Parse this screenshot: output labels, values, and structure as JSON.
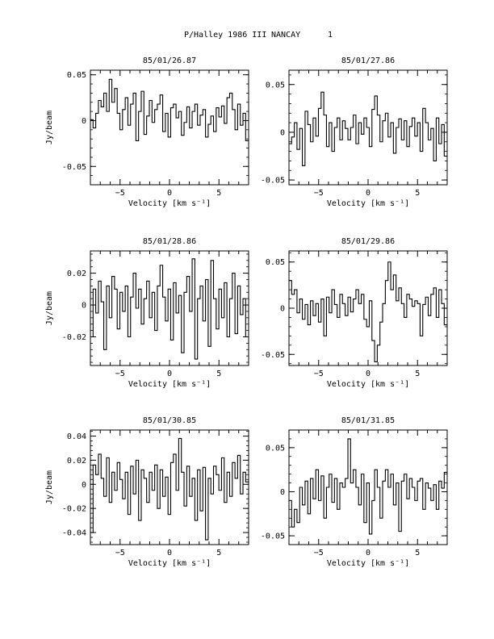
{
  "header": {
    "object": "P/Halley 1986 III",
    "station": "NANCAY",
    "page_number": "1"
  },
  "chart_data": [
    {
      "type": "line",
      "title": "85/01/26.87",
      "xlabel": "Velocity [km s⁻¹]",
      "ylabel": "Jy/beam",
      "xlim": [
        -8,
        8
      ],
      "ylim": [
        -0.07,
        0.055
      ],
      "xticks": [
        -5,
        0,
        5
      ],
      "yticks": [
        -0.05,
        0,
        0.05
      ],
      "yticklabels": [
        "-0.05",
        "0",
        "0.05"
      ],
      "x": [
        -8.0,
        -7.73,
        -7.46,
        -7.19,
        -6.92,
        -6.65,
        -6.37,
        -6.1,
        -5.83,
        -5.56,
        -5.29,
        -5.02,
        -4.75,
        -4.48,
        -4.21,
        -3.94,
        -3.67,
        -3.4,
        -3.13,
        -2.86,
        -2.59,
        -2.31,
        -2.04,
        -1.77,
        -1.5,
        -1.23,
        -0.96,
        -0.69,
        -0.42,
        -0.15,
        0.12,
        0.39,
        0.66,
        0.93,
        1.2,
        1.47,
        1.75,
        2.02,
        2.29,
        2.56,
        2.83,
        3.1,
        3.37,
        3.64,
        3.91,
        4.18,
        4.45,
        4.72,
        4.99,
        5.26,
        5.53,
        5.81,
        6.08,
        6.35,
        6.62,
        6.89,
        7.16,
        7.43,
        7.7
      ],
      "values": [
        0.001,
        -0.008,
        0.008,
        0.022,
        0.015,
        0.03,
        0.01,
        0.045,
        0.02,
        0.035,
        0.008,
        -0.01,
        0.012,
        0.025,
        -0.005,
        0.018,
        0.03,
        -0.022,
        0.01,
        0.032,
        -0.015,
        0.005,
        0.022,
        -0.002,
        0.012,
        0.018,
        0.028,
        -0.012,
        0.008,
        -0.018,
        0.014,
        0.018,
        0.003,
        0.01,
        -0.016,
        -0.002,
        0.015,
        -0.008,
        0.01,
        0.018,
        -0.005,
        0.006,
        0.012,
        -0.018,
        -0.004,
        0.005,
        -0.012,
        0.014,
        0.004,
        0.016,
        -0.003,
        0.025,
        0.03,
        0.012,
        -0.01,
        0.018,
        -0.005,
        0.008,
        -0.022
      ]
    },
    {
      "type": "line",
      "title": "85/01/27.86",
      "xlabel": "Velocity [km s⁻¹]",
      "ylabel": "",
      "xlim": [
        -8,
        8
      ],
      "ylim": [
        -0.055,
        0.065
      ],
      "xticks": [
        -5,
        0,
        5
      ],
      "yticks": [
        -0.05,
        0,
        0.05
      ],
      "yticklabels": [
        "-0.05",
        "0",
        "0.05"
      ],
      "x": [
        -8.0,
        -7.73,
        -7.46,
        -7.19,
        -6.92,
        -6.65,
        -6.37,
        -6.1,
        -5.83,
        -5.56,
        -5.29,
        -5.02,
        -4.75,
        -4.48,
        -4.21,
        -3.94,
        -3.67,
        -3.4,
        -3.13,
        -2.86,
        -2.59,
        -2.31,
        -2.04,
        -1.77,
        -1.5,
        -1.23,
        -0.96,
        -0.69,
        -0.42,
        -0.15,
        0.12,
        0.39,
        0.66,
        0.93,
        1.2,
        1.47,
        1.75,
        2.02,
        2.29,
        2.56,
        2.83,
        3.1,
        3.37,
        3.64,
        3.91,
        4.18,
        4.45,
        4.72,
        4.99,
        5.26,
        5.53,
        5.81,
        6.08,
        6.35,
        6.62,
        6.89,
        7.16,
        7.43,
        7.7
      ],
      "values": [
        -0.012,
        -0.005,
        0.01,
        -0.018,
        0.004,
        -0.035,
        0.022,
        0.008,
        -0.01,
        0.015,
        -0.004,
        0.025,
        0.042,
        0.018,
        -0.015,
        0.01,
        -0.02,
        0.005,
        0.015,
        -0.008,
        0.012,
        0.004,
        -0.008,
        0.005,
        0.018,
        -0.012,
        0.01,
        -0.002,
        0.015,
        0.005,
        -0.015,
        0.024,
        0.038,
        0.018,
        -0.01,
        0.012,
        0.02,
        -0.005,
        0.01,
        -0.022,
        0.005,
        0.014,
        -0.008,
        0.012,
        -0.015,
        0.006,
        0.015,
        -0.004,
        0.01,
        -0.02,
        0.025,
        0.01,
        -0.008,
        0.004,
        -0.03,
        0.015,
        -0.012,
        0.008,
        -0.025
      ]
    },
    {
      "type": "line",
      "title": "85/01/28.86",
      "xlabel": "Velocity [km s⁻¹]",
      "ylabel": "Jy/beam",
      "xlim": [
        -8,
        8
      ],
      "ylim": [
        -0.038,
        0.034
      ],
      "xticks": [
        -5,
        0,
        5
      ],
      "yticks": [
        -0.02,
        0,
        0.02
      ],
      "yticklabels": [
        "-0.02",
        "0",
        "0.02"
      ],
      "x": [
        -8.0,
        -7.73,
        -7.46,
        -7.19,
        -6.92,
        -6.65,
        -6.37,
        -6.1,
        -5.83,
        -5.56,
        -5.29,
        -5.02,
        -4.75,
        -4.48,
        -4.21,
        -3.94,
        -3.67,
        -3.4,
        -3.13,
        -2.86,
        -2.59,
        -2.31,
        -2.04,
        -1.77,
        -1.5,
        -1.23,
        -0.96,
        -0.69,
        -0.42,
        -0.15,
        0.12,
        0.39,
        0.66,
        0.93,
        1.2,
        1.47,
        1.75,
        2.02,
        2.29,
        2.56,
        2.83,
        3.1,
        3.37,
        3.64,
        3.91,
        4.18,
        4.45,
        4.72,
        4.99,
        5.26,
        5.53,
        5.81,
        6.08,
        6.35,
        6.62,
        6.89,
        7.16,
        7.43,
        7.7
      ],
      "values": [
        -0.02,
        0.01,
        -0.005,
        0.015,
        0.002,
        -0.028,
        0.012,
        -0.008,
        0.018,
        0.01,
        -0.015,
        0.008,
        -0.004,
        0.012,
        -0.02,
        0.005,
        0.02,
        -0.002,
        0.01,
        -0.012,
        0.004,
        0.015,
        -0.008,
        0.008,
        -0.016,
        0.012,
        0.025,
        0.005,
        -0.01,
        0.01,
        -0.022,
        0.014,
        -0.005,
        0.006,
        -0.03,
        0.008,
        0.018,
        -0.004,
        0.029,
        -0.034,
        0.004,
        0.012,
        -0.01,
        0.016,
        -0.026,
        0.028,
        0.004,
        -0.015,
        0.01,
        -0.008,
        0.014,
        -0.02,
        0.004,
        0.02,
        -0.018,
        0.012,
        -0.006,
        0.004,
        -0.02
      ]
    },
    {
      "type": "line",
      "title": "85/01/29.86",
      "xlabel": "Velocity [km s⁻¹]",
      "ylabel": "",
      "xlim": [
        -8,
        8
      ],
      "ylim": [
        -0.062,
        0.062
      ],
      "xticks": [
        -5,
        0,
        5
      ],
      "yticks": [
        -0.05,
        0,
        0.05
      ],
      "yticklabels": [
        "-0.05",
        "0",
        "0.05"
      ],
      "x": [
        -8.0,
        -7.73,
        -7.46,
        -7.19,
        -6.92,
        -6.65,
        -6.37,
        -6.1,
        -5.83,
        -5.56,
        -5.29,
        -5.02,
        -4.75,
        -4.48,
        -4.21,
        -3.94,
        -3.67,
        -3.4,
        -3.13,
        -2.86,
        -2.59,
        -2.31,
        -2.04,
        -1.77,
        -1.5,
        -1.23,
        -0.96,
        -0.69,
        -0.42,
        -0.15,
        0.12,
        0.39,
        0.66,
        0.93,
        1.2,
        1.47,
        1.75,
        2.02,
        2.29,
        2.56,
        2.83,
        3.1,
        3.37,
        3.64,
        3.91,
        4.18,
        4.45,
        4.72,
        4.99,
        5.26,
        5.53,
        5.81,
        6.08,
        6.35,
        6.62,
        6.89,
        7.16,
        7.43,
        7.7
      ],
      "values": [
        0.03,
        0.015,
        0.02,
        -0.005,
        0.01,
        -0.012,
        0.004,
        -0.018,
        0.008,
        -0.008,
        0.005,
        -0.015,
        0.01,
        -0.03,
        0.012,
        -0.005,
        0.02,
        0.004,
        -0.01,
        0.015,
        0.005,
        -0.008,
        0.012,
        -0.004,
        0.01,
        0.02,
        0.005,
        0.015,
        -0.012,
        -0.02,
        0.008,
        -0.035,
        -0.058,
        -0.04,
        -0.015,
        0.005,
        0.03,
        0.05,
        0.02,
        0.036,
        0.008,
        0.022,
        0.005,
        -0.01,
        0.015,
        0.01,
        0.002,
        0.008,
        0.005,
        -0.03,
        0.004,
        0.012,
        -0.008,
        0.015,
        0.022,
        -0.01,
        0.02,
        0.005,
        -0.018
      ]
    },
    {
      "type": "line",
      "title": "85/01/30.85",
      "xlabel": "Velocity [km s⁻¹]",
      "ylabel": "Jy/beam",
      "xlim": [
        -8,
        8
      ],
      "ylim": [
        -0.05,
        0.045
      ],
      "xticks": [
        -5,
        0,
        5
      ],
      "yticks": [
        -0.04,
        -0.02,
        0,
        0.02,
        0.04
      ],
      "yticklabels": [
        "-0.04",
        "-0.02",
        "0",
        "0.02",
        "0.04"
      ],
      "x": [
        -8.0,
        -7.73,
        -7.46,
        -7.19,
        -6.92,
        -6.65,
        -6.37,
        -6.1,
        -5.83,
        -5.56,
        -5.29,
        -5.02,
        -4.75,
        -4.48,
        -4.21,
        -3.94,
        -3.67,
        -3.4,
        -3.13,
        -2.86,
        -2.59,
        -2.31,
        -2.04,
        -1.77,
        -1.5,
        -1.23,
        -0.96,
        -0.69,
        -0.42,
        -0.15,
        0.12,
        0.39,
        0.66,
        0.93,
        1.2,
        1.47,
        1.75,
        2.02,
        2.29,
        2.56,
        2.83,
        3.1,
        3.37,
        3.64,
        3.91,
        4.18,
        4.45,
        4.72,
        4.99,
        5.26,
        5.53,
        5.81,
        6.08,
        6.35,
        6.62,
        6.89,
        7.16,
        7.43,
        7.7
      ],
      "values": [
        -0.04,
        0.016,
        0.008,
        0.025,
        0.005,
        -0.01,
        0.022,
        -0.015,
        0.01,
        -0.005,
        0.018,
        0.004,
        -0.012,
        0.01,
        -0.025,
        0.015,
        -0.008,
        0.02,
        -0.03,
        0.012,
        0.005,
        -0.015,
        0.01,
        -0.005,
        0.016,
        -0.02,
        0.012,
        -0.01,
        0.006,
        -0.025,
        0.018,
        0.025,
        -0.005,
        0.038,
        0.01,
        -0.018,
        0.015,
        -0.01,
        0.005,
        -0.03,
        0.012,
        -0.022,
        0.014,
        -0.046,
        0.005,
        -0.008,
        0.015,
        0.008,
        -0.005,
        0.022,
        -0.015,
        0.01,
        -0.01,
        0.018,
        0.005,
        0.024,
        -0.008,
        0.01,
        0.002
      ]
    },
    {
      "type": "line",
      "title": "85/01/31.85",
      "xlabel": "Velocity [km s⁻¹]",
      "ylabel": "",
      "xlim": [
        -8,
        8
      ],
      "ylim": [
        -0.06,
        0.07
      ],
      "xticks": [
        -5,
        0,
        5
      ],
      "yticks": [
        -0.05,
        0,
        0.05
      ],
      "yticklabels": [
        "-0.05",
        "0",
        "0.05"
      ],
      "x": [
        -8.0,
        -7.73,
        -7.46,
        -7.19,
        -6.92,
        -6.65,
        -6.37,
        -6.1,
        -5.83,
        -5.56,
        -5.29,
        -5.02,
        -4.75,
        -4.48,
        -4.21,
        -3.94,
        -3.67,
        -3.4,
        -3.13,
        -2.86,
        -2.59,
        -2.31,
        -2.04,
        -1.77,
        -1.5,
        -1.23,
        -0.96,
        -0.69,
        -0.42,
        -0.15,
        0.12,
        0.39,
        0.66,
        0.93,
        1.2,
        1.47,
        1.75,
        2.02,
        2.29,
        2.56,
        2.83,
        3.1,
        3.37,
        3.64,
        3.91,
        4.18,
        4.45,
        4.72,
        4.99,
        5.26,
        5.53,
        5.81,
        6.08,
        6.35,
        6.62,
        6.89,
        7.16,
        7.43,
        7.7
      ],
      "values": [
        -0.01,
        -0.04,
        -0.02,
        -0.035,
        0.005,
        -0.015,
        0.012,
        -0.025,
        0.015,
        -0.008,
        0.025,
        -0.01,
        0.018,
        -0.03,
        0.005,
        0.02,
        -0.012,
        0.015,
        -0.02,
        0.01,
        0.005,
        0.015,
        0.06,
        0.01,
        0.025,
        0.005,
        -0.015,
        0.02,
        -0.035,
        0.01,
        -0.048,
        -0.01,
        0.025,
        0.005,
        -0.03,
        0.012,
        0.025,
        0.005,
        0.02,
        -0.015,
        0.01,
        -0.045,
        0.012,
        0.02,
        -0.008,
        0.015,
        0.005,
        -0.01,
        0.012,
        0.015,
        -0.02,
        0.01,
        0.004,
        -0.01,
        0.008,
        -0.02,
        0.012,
        0.004,
        0.022
      ]
    }
  ]
}
